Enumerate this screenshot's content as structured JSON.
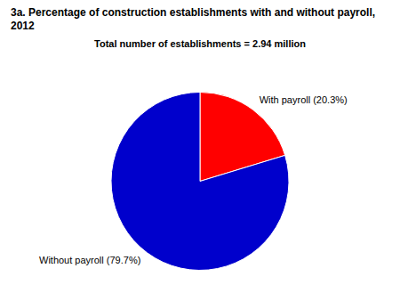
{
  "chart_data": {
    "type": "pie",
    "title": "3a. Percentage of construction establishments with and without payroll, 2012",
    "subtitle": "Total number of establishments = 2.94 million",
    "categories": [
      "With payroll (20.3%)",
      "Without payroll (79.7%)"
    ],
    "values": [
      20.3,
      79.7
    ],
    "colors": [
      "#ff0000",
      "#0000cc"
    ]
  }
}
